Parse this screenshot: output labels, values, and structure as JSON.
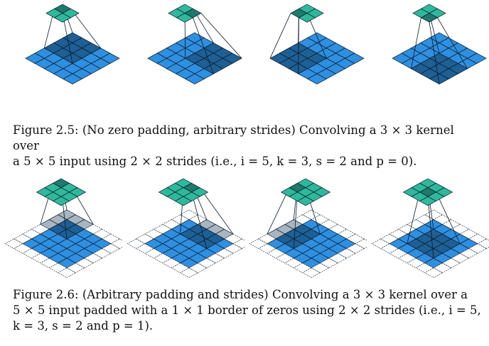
{
  "figure_2_5": {
    "caption": [
      "Figure 2.5:  (No zero padding, arbitrary strides) Convolving a 3 × 3 kernel over",
      "a 5 × 5 input using 2 × 2 strides (i.e., i = 5, k = 3, s = 2 and p = 0)."
    ],
    "panels": [
      {
        "label": "step-1",
        "kernel_pos": [
          0,
          0
        ]
      },
      {
        "label": "step-2",
        "kernel_pos": [
          0,
          2
        ]
      },
      {
        "label": "step-3",
        "kernel_pos": [
          2,
          0
        ]
      },
      {
        "label": "step-4",
        "kernel_pos": [
          2,
          2
        ]
      }
    ],
    "input_size": 5,
    "padding": 0,
    "kernel": 3,
    "stride": 2,
    "output_size": 2
  },
  "figure_2_6": {
    "caption": [
      "Figure 2.6:  (Arbitrary padding and strides) Convolving a 3 × 3 kernel over a",
      "5 × 5 input padded with a 1 × 1 border of zeros using 2 × 2 strides (i.e., i = 5,",
      "k = 3, s = 2 and p = 1)."
    ],
    "panels": [
      {
        "label": "step-1",
        "kernel_pos": [
          0,
          0
        ]
      },
      {
        "label": "step-2",
        "kernel_pos": [
          0,
          2
        ]
      },
      {
        "label": "step-3",
        "kernel_pos": [
          2,
          0
        ]
      },
      {
        "label": "step-4",
        "kernel_pos": [
          2,
          2
        ]
      }
    ],
    "input_size": 5,
    "padding": 1,
    "kernel": 3,
    "stride": 2,
    "output_size": 3
  },
  "colors": {
    "input": "#2f8fe0",
    "input_dark": "#1e5f95",
    "pad": "#ffffff",
    "pad_shaded": "#a9b6c2",
    "output": "#2fb89c",
    "output_dark": "#1d7a6c",
    "line": "#0a1a2a"
  }
}
